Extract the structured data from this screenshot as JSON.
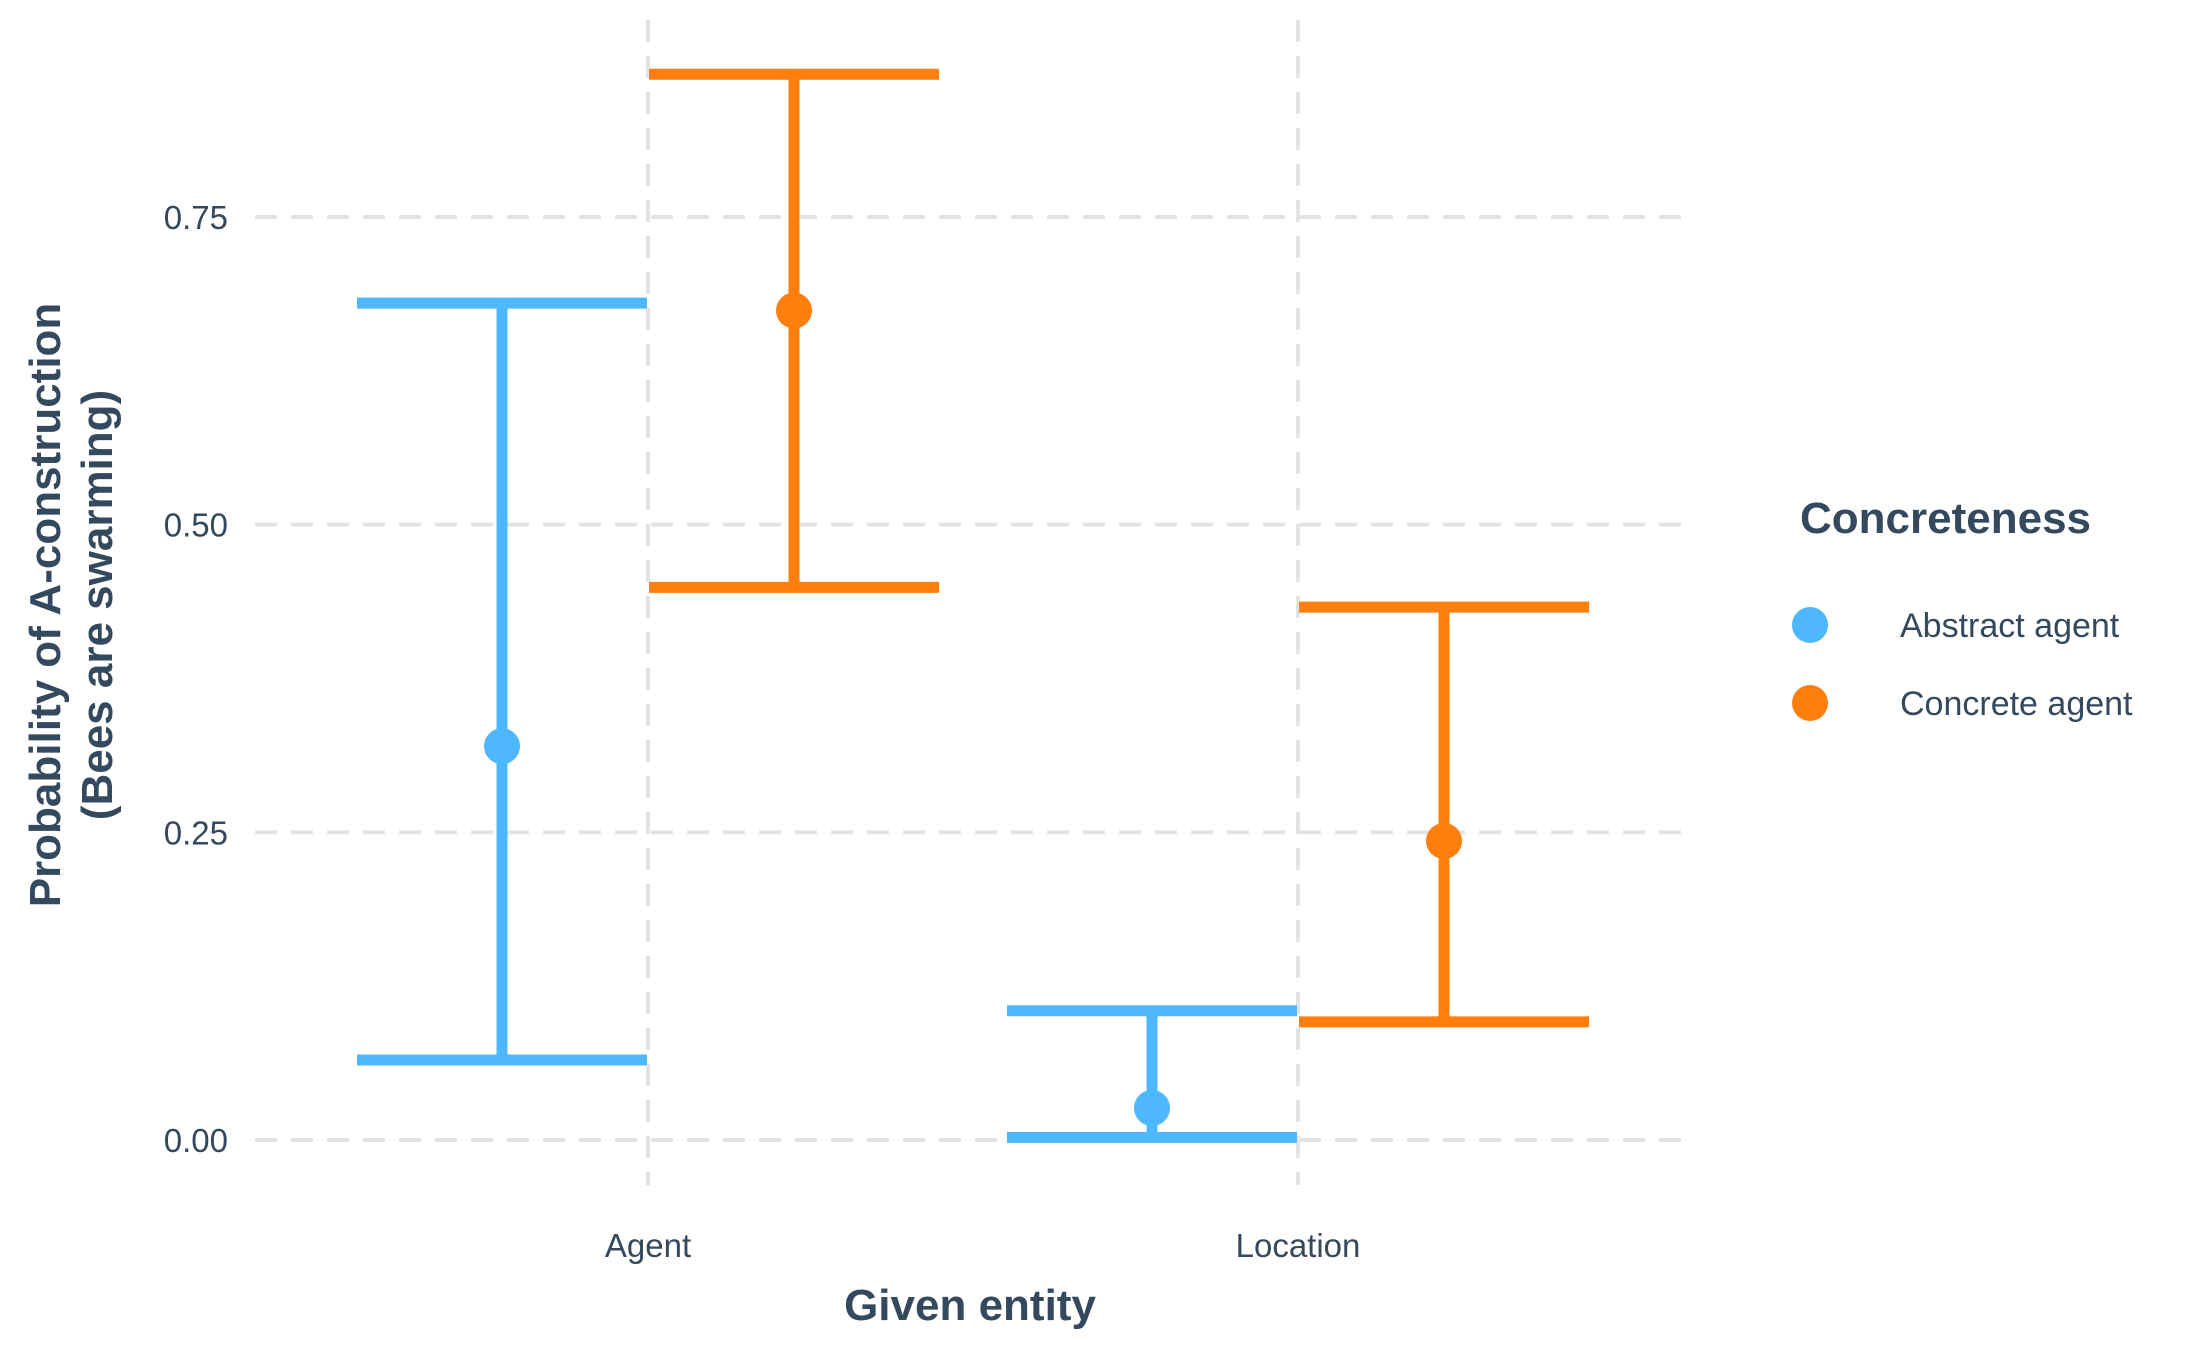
{
  "chart_data": {
    "type": "errorbar",
    "title": "",
    "xlabel": "Given entity",
    "ylabel_line1": "Probability of A-construction",
    "ylabel_line2": "(Bees are swarming)",
    "categories": [
      "Agent",
      "Location"
    ],
    "yticks": [
      0.0,
      0.25,
      0.5,
      0.75
    ],
    "ytick_labels": [
      "0.00",
      "0.25",
      "0.50",
      "0.75"
    ],
    "ylim": [
      -0.04,
      0.91
    ],
    "grid": true,
    "legend": {
      "title": "Concreteness",
      "position": "right"
    },
    "series": [
      {
        "name": "Abstract agent",
        "color": "#4db8ff",
        "estimates": [
          0.32,
          0.026
        ],
        "lower": [
          0.065,
          0.002
        ],
        "upper": [
          0.68,
          0.105
        ]
      },
      {
        "name": "Concrete agent",
        "color": "#ff7f0e",
        "estimates": [
          0.674,
          0.243
        ],
        "lower": [
          0.449,
          0.096
        ],
        "upper": [
          0.866,
          0.433
        ]
      }
    ]
  }
}
